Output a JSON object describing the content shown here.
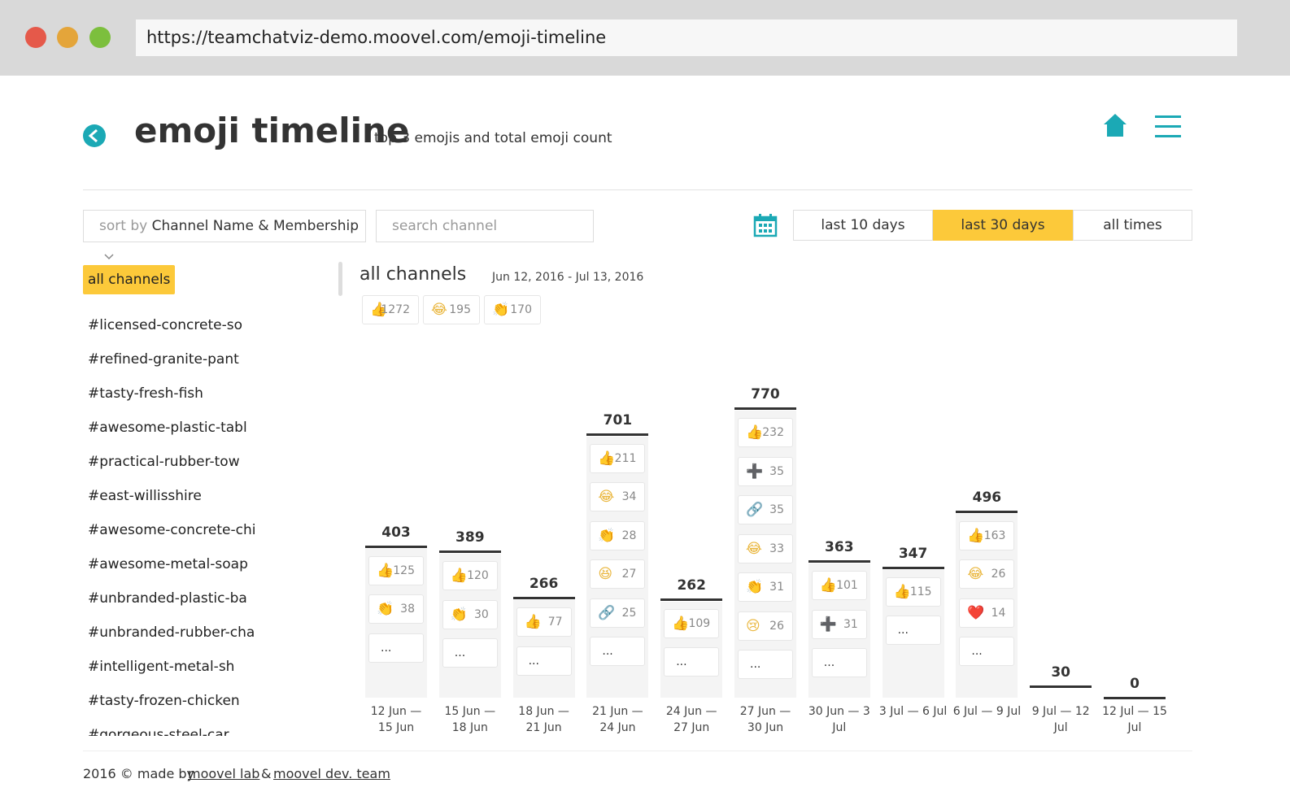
{
  "browser": {
    "url": "https://teamchatviz-demo.moovel.com/emoji-timeline"
  },
  "header": {
    "title": "emoji timeline",
    "subtitle": "top 3 emojis and total emoji count"
  },
  "controls": {
    "sort_prefix": "sort by",
    "sort_value": "Channel Name & Membership",
    "search_placeholder": "search channel",
    "ranges": [
      "last 10 days",
      "last 30 days",
      "all times"
    ],
    "active_range": 1
  },
  "channels": {
    "selected": "all channels",
    "items": [
      "#licensed-concrete-so",
      "#refined-granite-pant",
      "#tasty-fresh-fish",
      "#awesome-plastic-tabl",
      "#practical-rubber-tow",
      "#east-willisshire",
      "#awesome-concrete-chi",
      "#awesome-metal-soap",
      "#unbranded-plastic-ba",
      "#unbranded-rubber-cha",
      "#intelligent-metal-sh",
      "#tasty-frozen-chicken",
      "#gorgeous-steel-car"
    ]
  },
  "panel": {
    "title": "all channels",
    "date_range": "Jun 12, 2016 - Jul 13, 2016",
    "top_emojis": [
      {
        "emoji": "👍",
        "count": 1272
      },
      {
        "emoji": "😂",
        "count": 195
      },
      {
        "emoji": "👏",
        "count": 170
      }
    ]
  },
  "timeline": [
    {
      "total": 403,
      "label": "12 Jun — 15 Jun",
      "emojis": [
        {
          "emoji": "👍",
          "count": 125
        },
        {
          "emoji": "👏",
          "count": 38
        }
      ],
      "more": "..."
    },
    {
      "total": 389,
      "label": "15 Jun — 18 Jun",
      "emojis": [
        {
          "emoji": "👍",
          "count": 120
        },
        {
          "emoji": "👏",
          "count": 30
        }
      ],
      "more": "..."
    },
    {
      "total": 266,
      "label": "18 Jun — 21 Jun",
      "emojis": [
        {
          "emoji": "👍",
          "count": 77
        }
      ],
      "more": "..."
    },
    {
      "total": 701,
      "label": "21 Jun — 24 Jun",
      "emojis": [
        {
          "emoji": "👍",
          "count": 211
        },
        {
          "emoji": "😂",
          "count": 34
        },
        {
          "emoji": "👏",
          "count": 28
        },
        {
          "emoji": "😆",
          "count": 27
        },
        {
          "emoji": "🔗",
          "count": 25
        }
      ],
      "more": "..."
    },
    {
      "total": 262,
      "label": "24 Jun — 27 Jun",
      "emojis": [
        {
          "emoji": "👍",
          "count": 109
        }
      ],
      "more": "..."
    },
    {
      "total": 770,
      "label": "27 Jun — 30 Jun",
      "emojis": [
        {
          "emoji": "👍",
          "count": 232
        },
        {
          "emoji": "➕",
          "count": 35
        },
        {
          "emoji": "🔗",
          "count": 35
        },
        {
          "emoji": "😂",
          "count": 33
        },
        {
          "emoji": "👏",
          "count": 31
        },
        {
          "emoji": "😢",
          "count": 26
        }
      ],
      "more": "..."
    },
    {
      "total": 363,
      "label": "30 Jun — 3 Jul",
      "emojis": [
        {
          "emoji": "👍",
          "count": 101
        },
        {
          "emoji": "➕",
          "count": 31
        }
      ],
      "more": "..."
    },
    {
      "total": 347,
      "label": "3 Jul — 6 Jul",
      "emojis": [
        {
          "emoji": "👍",
          "count": 115
        }
      ],
      "more": "..."
    },
    {
      "total": 496,
      "label": "6 Jul — 9 Jul",
      "emojis": [
        {
          "emoji": "👍",
          "count": 163
        },
        {
          "emoji": "😂",
          "count": 26
        },
        {
          "emoji": "❤️",
          "count": 14
        }
      ],
      "more": "..."
    },
    {
      "total": 30,
      "label": "9 Jul — 12 Jul",
      "emojis": []
    },
    {
      "total": 0,
      "label": "12 Jul — 15 Jul",
      "emojis": []
    }
  ],
  "footer": {
    "text": "2016 © made by",
    "link1": "moovel lab",
    "separator": "&",
    "link2": "moovel dev. team"
  }
}
